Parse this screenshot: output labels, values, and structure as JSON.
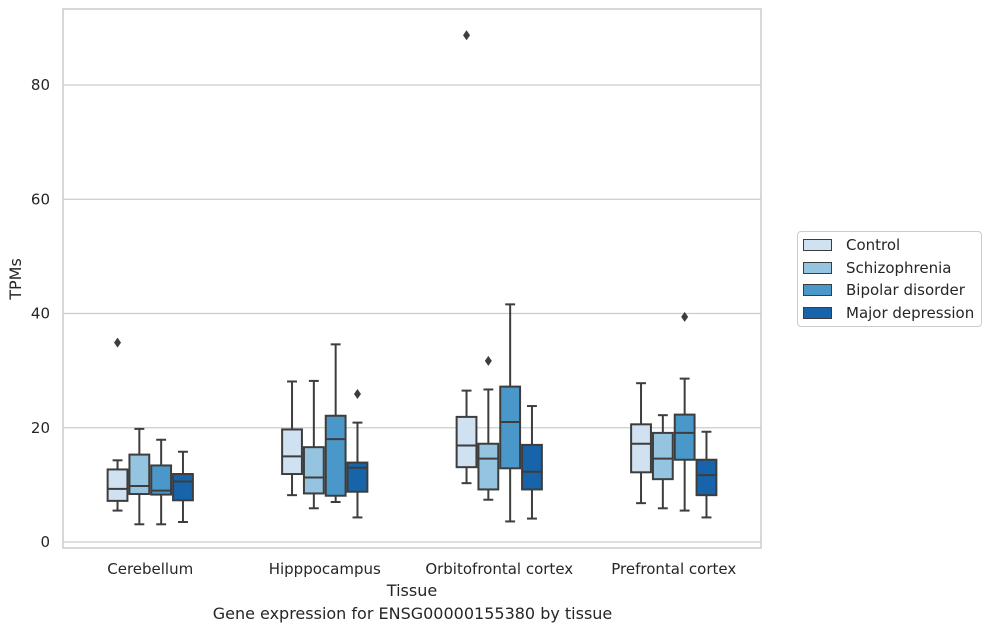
{
  "chart_data": {
    "type": "box",
    "title": "",
    "caption": "Gene expression for ENSG00000155380 by tissue",
    "xlabel": "Tissue",
    "ylabel": "TPMs",
    "ylim": [
      -1,
      94
    ],
    "yticks": [
      0,
      20,
      40,
      60,
      80
    ],
    "grid": true,
    "legend_position": "right",
    "categories": [
      "Cerebellum",
      "Hipppocampus",
      "Orbitofrontal cortex",
      "Prefrontal cortex"
    ],
    "series": [
      {
        "name": "Control",
        "color": "#d0e1f2",
        "boxes": [
          {
            "whisker_low": 5.5,
            "q1": 7.2,
            "median": 9.3,
            "q3": 12.7,
            "whisker_high": 14.3,
            "outliers": [
              34.9
            ]
          },
          {
            "whisker_low": 8.2,
            "q1": 11.9,
            "median": 15.0,
            "q3": 19.7,
            "whisker_high": 28.1,
            "outliers": []
          },
          {
            "whisker_low": 10.3,
            "q1": 13.1,
            "median": 16.9,
            "q3": 21.9,
            "whisker_high": 26.5,
            "outliers": [
              88.7
            ]
          },
          {
            "whisker_low": 6.8,
            "q1": 12.2,
            "median": 17.2,
            "q3": 20.6,
            "whisker_high": 27.8,
            "outliers": []
          }
        ]
      },
      {
        "name": "Schizophrenia",
        "color": "#94c4df",
        "boxes": [
          {
            "whisker_low": 3.1,
            "q1": 8.4,
            "median": 9.8,
            "q3": 15.3,
            "whisker_high": 19.8,
            "outliers": []
          },
          {
            "whisker_low": 5.9,
            "q1": 8.5,
            "median": 11.3,
            "q3": 16.6,
            "whisker_high": 28.2,
            "outliers": []
          },
          {
            "whisker_low": 7.4,
            "q1": 9.2,
            "median": 14.6,
            "q3": 17.2,
            "whisker_high": 26.7,
            "outliers": [
              31.7
            ]
          },
          {
            "whisker_low": 5.9,
            "q1": 11.0,
            "median": 14.6,
            "q3": 19.1,
            "whisker_high": 22.2,
            "outliers": []
          }
        ]
      },
      {
        "name": "Bipolar disorder",
        "color": "#4a98c9",
        "boxes": [
          {
            "whisker_low": 3.1,
            "q1": 8.3,
            "median": 9.0,
            "q3": 13.4,
            "whisker_high": 17.9,
            "outliers": []
          },
          {
            "whisker_low": 7.0,
            "q1": 8.1,
            "median": 18.0,
            "q3": 22.1,
            "whisker_high": 34.6,
            "outliers": []
          },
          {
            "whisker_low": 3.6,
            "q1": 12.9,
            "median": 21.0,
            "q3": 27.2,
            "whisker_high": 41.6,
            "outliers": []
          },
          {
            "whisker_low": 5.5,
            "q1": 14.4,
            "median": 19.1,
            "q3": 22.3,
            "whisker_high": 28.6,
            "outliers": [
              39.4
            ]
          }
        ]
      },
      {
        "name": "Major depression",
        "color": "#1764ab",
        "boxes": [
          {
            "whisker_low": 3.5,
            "q1": 7.3,
            "median": 10.6,
            "q3": 11.9,
            "whisker_high": 15.8,
            "outliers": []
          },
          {
            "whisker_low": 4.3,
            "q1": 8.8,
            "median": 13.0,
            "q3": 13.9,
            "whisker_high": 20.9,
            "outliers": [
              25.9
            ]
          },
          {
            "whisker_low": 4.1,
            "q1": 9.2,
            "median": 12.3,
            "q3": 17.0,
            "whisker_high": 23.8,
            "outliers": []
          },
          {
            "whisker_low": 4.3,
            "q1": 8.2,
            "median": 11.7,
            "q3": 14.4,
            "whisker_high": 19.3,
            "outliers": []
          }
        ]
      }
    ]
  }
}
